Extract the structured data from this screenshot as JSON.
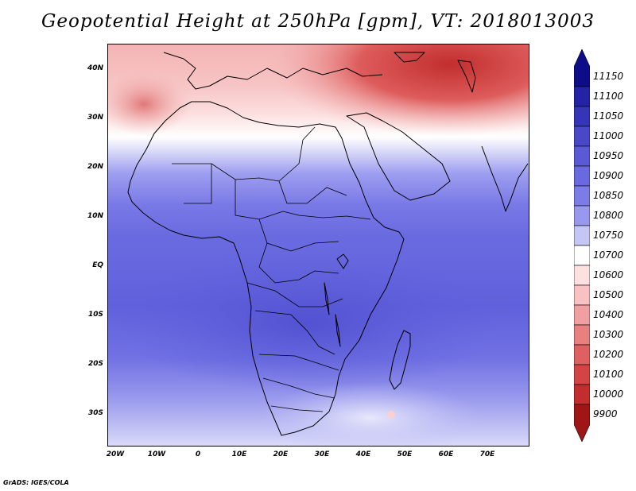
{
  "title": "Geopotential Height at 250hPa [gpm], VT: 2018013003",
  "credit": "GrADS: IGES/COLA",
  "map": {
    "lat_labels": [
      "40N",
      "30N",
      "20N",
      "10N",
      "EQ",
      "10S",
      "20S",
      "30S"
    ],
    "lon_labels": [
      "20W",
      "10W",
      "0",
      "10E",
      "20E",
      "30E",
      "40E",
      "50E",
      "60E",
      "70E"
    ]
  },
  "colorbar": {
    "levels": [
      "11150",
      "11100",
      "11050",
      "11000",
      "10950",
      "10900",
      "10850",
      "10800",
      "10750",
      "10700",
      "10600",
      "10500",
      "10400",
      "10300",
      "10200",
      "10100",
      "10000",
      "9900"
    ],
    "colors": [
      "#0d0d8a",
      "#2323a6",
      "#3535b8",
      "#4848c8",
      "#5a5ad6",
      "#6a6ae0",
      "#7c7ce8",
      "#9898ee",
      "#c6c6f6",
      "#ffffff",
      "#fde0e0",
      "#f9c2c2",
      "#f0a0a0",
      "#e88080",
      "#de6060",
      "#d44444",
      "#c22e2e",
      "#a01616"
    ]
  }
}
